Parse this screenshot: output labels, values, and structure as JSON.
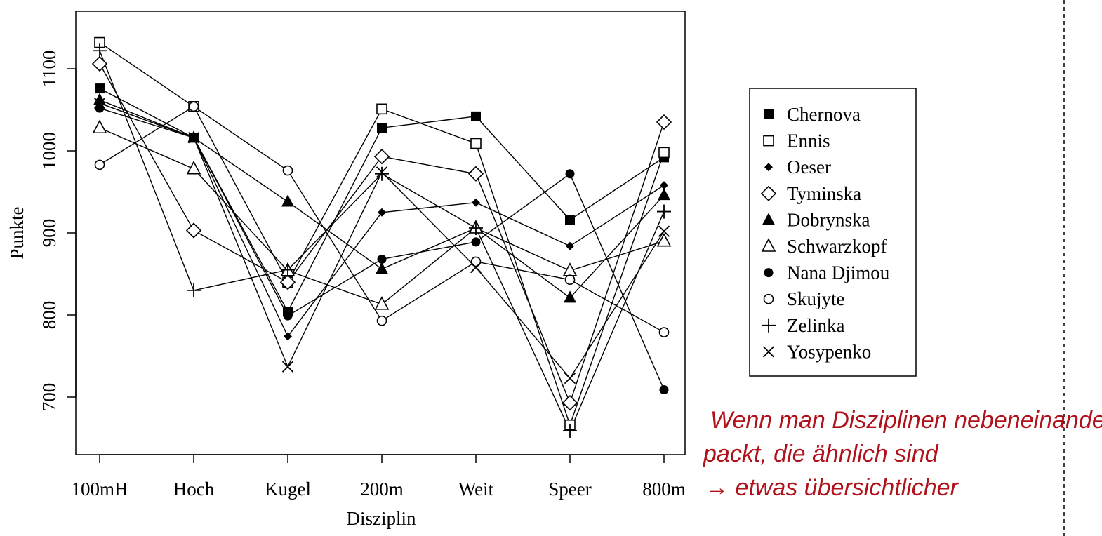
{
  "chart_data": {
    "type": "line",
    "xlabel": "Disziplin",
    "ylabel": "Punkte",
    "categories": [
      "100mH",
      "Hoch",
      "Kugel",
      "200m",
      "Weit",
      "Speer",
      "800m"
    ],
    "ylim": [
      640,
      1145
    ],
    "yticks": [
      700,
      800,
      900,
      1000,
      1100
    ],
    "legend_position": "right",
    "grid": false,
    "series": [
      {
        "name": "Chernova",
        "marker": "square-filled",
        "values": [
          1076,
          1016,
          804,
          1028,
          1042,
          916,
          992
        ]
      },
      {
        "name": "Ennis",
        "marker": "square-open",
        "values": [
          1132,
          1054,
          840,
          1051,
          1009,
          666,
          998
        ]
      },
      {
        "name": "Oeser",
        "marker": "diamond-filled",
        "values": [
          1058,
          1016,
          774,
          925,
          937,
          884,
          958
        ]
      },
      {
        "name": "Tyminska",
        "marker": "diamond-open",
        "values": [
          1106,
          903,
          840,
          993,
          972,
          693,
          1035
        ]
      },
      {
        "name": "Dobrynska",
        "marker": "triangle-filled",
        "values": [
          1062,
          1016,
          938,
          856,
          906,
          821,
          946
        ]
      },
      {
        "name": "Schwarzkopf",
        "marker": "triangle-open",
        "values": [
          1028,
          978,
          854,
          813,
          906,
          854,
          890
        ]
      },
      {
        "name": "Nana Djimou",
        "marker": "circle-filled",
        "values": [
          1052,
          1016,
          799,
          868,
          889,
          972,
          709
        ]
      },
      {
        "name": "Skujyte",
        "marker": "circle-open",
        "values": [
          983,
          1054,
          976,
          793,
          865,
          843,
          779
        ]
      },
      {
        "name": "Zelinka",
        "marker": "plus",
        "values": [
          1122,
          830,
          855,
          972,
          906,
          659,
          926
        ]
      },
      {
        "name": "Yosypenko",
        "marker": "cross",
        "values": [
          1058,
          1016,
          737,
          974,
          858,
          723,
          902
        ]
      }
    ]
  },
  "annotation": {
    "lines": [
      "Wenn man Disziplinen nebeneinander",
      "packt, die ähnlich sind",
      "→ etwas übersichtlicher"
    ],
    "color": "#b0121b"
  }
}
